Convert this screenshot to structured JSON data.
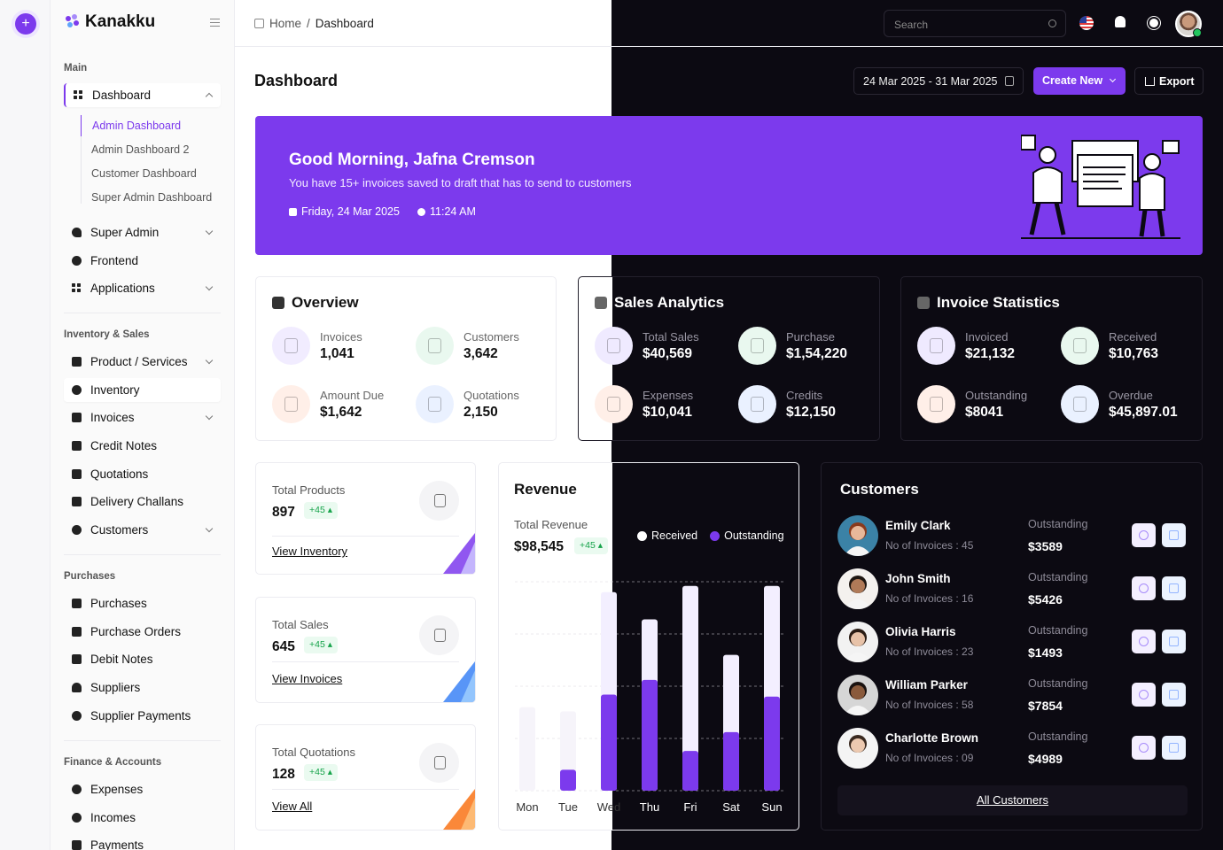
{
  "brand": {
    "name": "Kanakku"
  },
  "sidebar": {
    "sections": {
      "main": "Main",
      "inventory": "Inventory & Sales",
      "purchases": "Purchases",
      "finance": "Finance & Accounts"
    },
    "dashboard": {
      "label": "Dashboard",
      "sub": [
        "Admin Dashboard",
        "Admin Dashboard 2",
        "Customer Dashboard",
        "Super Admin Dashboard"
      ]
    },
    "main_items": [
      "Super Admin",
      "Frontend",
      "Applications"
    ],
    "inventory_items": [
      "Product / Services",
      "Inventory",
      "Invoices",
      "Credit Notes",
      "Quotations",
      "Delivery Challans",
      "Customers"
    ],
    "purchase_items": [
      "Purchases",
      "Purchase Orders",
      "Debit Notes",
      "Suppliers",
      "Supplier Payments"
    ],
    "finance_items": [
      "Expenses",
      "Incomes",
      "Payments"
    ]
  },
  "breadcrumb": {
    "home": "Home",
    "sep": "/",
    "current": "Dashboard"
  },
  "header": {
    "search_placeholder": "Search"
  },
  "page": {
    "title": "Dashboard",
    "date_range": "24 Mar 2025 - 31 Mar 2025",
    "create_label": "Create New",
    "export_label": "Export"
  },
  "banner": {
    "greeting": "Good Morning, Jafna Cremson",
    "message": "You have 15+ invoices saved to draft that has to send to customers",
    "date": "Friday, 24 Mar 2025",
    "time": "11:24 AM"
  },
  "overview": {
    "title": "Overview",
    "stats": [
      {
        "label": "Invoices",
        "value": "1,041",
        "color": "#f1ecff"
      },
      {
        "label": "Customers",
        "value": "3,642",
        "color": "#e9f8ef"
      },
      {
        "label": "Amount Due",
        "value": "$1,642",
        "color": "#ffefe8"
      },
      {
        "label": "Quotations",
        "value": "2,150",
        "color": "#eaf1ff"
      }
    ]
  },
  "sales": {
    "title": "Sales Analytics",
    "stats": [
      {
        "label": "Total Sales",
        "value": "$40,569",
        "color": "#efeaff"
      },
      {
        "label": "Purchase",
        "value": "$1,54,220",
        "color": "#e9f8ef"
      },
      {
        "label": "Expenses",
        "value": "$10,041",
        "color": "#ffefe8"
      },
      {
        "label": "Credits",
        "value": "$12,150",
        "color": "#eaf1ff"
      }
    ]
  },
  "invoice_stats": {
    "title": "Invoice Statistics",
    "stats": [
      {
        "label": "Invoiced",
        "value": "$21,132",
        "color": "#efeaff"
      },
      {
        "label": "Received",
        "value": "$10,763",
        "color": "#e9f8ef"
      },
      {
        "label": "Outstanding",
        "value": "$8041",
        "color": "#ffefe8"
      },
      {
        "label": "Overdue",
        "value": "$45,897.01",
        "color": "#eaf1ff"
      }
    ]
  },
  "mini_cards": [
    {
      "title": "Total Products",
      "value": "897",
      "badge": "+45",
      "link": "View Inventory",
      "accent": "#7c3aed"
    },
    {
      "title": "Total Sales",
      "value": "645",
      "badge": "+45",
      "link": "View Invoices",
      "accent": "#3b82f6"
    },
    {
      "title": "Total Quotations",
      "value": "128",
      "badge": "+45",
      "link": "View All",
      "accent": "#f97316"
    }
  ],
  "revenue": {
    "title": "Revenue",
    "total_label": "Total Revenue",
    "total_value": "$98,545",
    "badge": "+45"
  },
  "chart_data": {
    "type": "bar",
    "categories": [
      "Mon",
      "Tue",
      "Wed",
      "Thu",
      "Fri",
      "Sat",
      "Sun"
    ],
    "series": [
      {
        "name": "Received",
        "values": [
          40,
          38,
          95,
          82,
          98,
          65,
          98
        ],
        "color": "#f3efff"
      },
      {
        "name": "Outstanding",
        "values": [
          0,
          10,
          46,
          53,
          19,
          28,
          45
        ],
        "color": "#7c3aed"
      }
    ],
    "ylim": [
      0,
      100
    ],
    "grid": true,
    "legend": "top-right"
  },
  "customers": {
    "title": "Customers",
    "outstanding_label": "Outstanding",
    "all_label": "All Customers",
    "list": [
      {
        "name": "Emily Clark",
        "invoices": "No of Invoices : 45",
        "amount": "$3589",
        "skin": "#e8b89a",
        "hair": "#8a3a1c",
        "bg": "#3b82a6"
      },
      {
        "name": "John Smith",
        "invoices": "No of Invoices : 16",
        "amount": "$5426",
        "skin": "#b07a58",
        "hair": "#1f1712",
        "bg": "#f4f1ee"
      },
      {
        "name": "Olivia Harris",
        "invoices": "No of Invoices : 23",
        "amount": "$1493",
        "skin": "#e7c2a8",
        "hair": "#2a1c14",
        "bg": "#f2f2f2"
      },
      {
        "name": "William Parker",
        "invoices": "No of Invoices : 58",
        "amount": "$7854",
        "skin": "#8a5a3c",
        "hair": "#1a1210",
        "bg": "#d6d6d6"
      },
      {
        "name": "Charlotte Brown",
        "invoices": "No of Invoices : 09",
        "amount": "$4989",
        "skin": "#ecc9b0",
        "hair": "#3a2a20",
        "bg": "#f4f4f4"
      }
    ]
  }
}
